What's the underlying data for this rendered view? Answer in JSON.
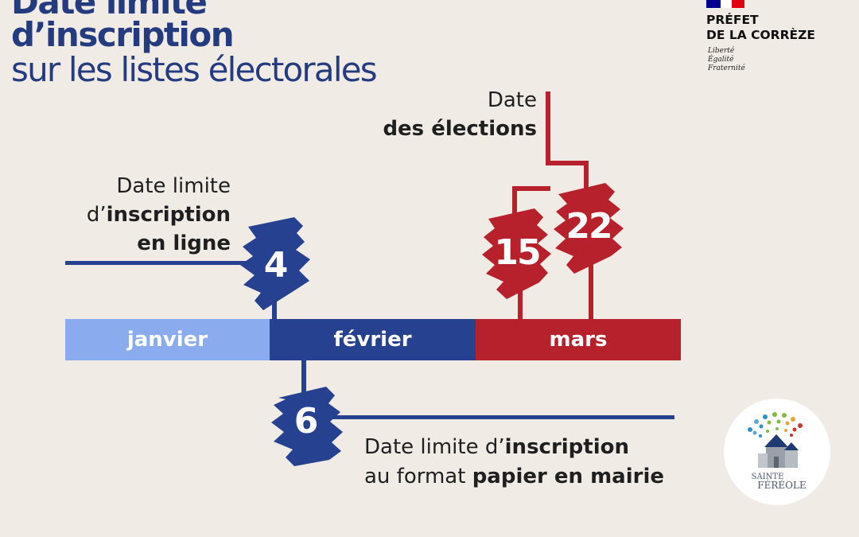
{
  "title": {
    "line1": "Date limite",
    "line2": "d’inscription",
    "line3": "sur les listes électorales"
  },
  "logo": {
    "line1": "PRÉFET",
    "line2": "DE LA CORRÈZE",
    "motto": [
      "Liberté",
      "Égalité",
      "Fraternité"
    ],
    "flag_colors": [
      "#000091",
      "#ffffff",
      "#e1000f"
    ]
  },
  "timeline": {
    "months": [
      "janvier",
      "février",
      "mars"
    ],
    "month_colors": [
      "#8aabee",
      "#26418f",
      "#b6212b"
    ]
  },
  "online": {
    "line1": "Date limite",
    "line2_prefix": "d’",
    "line2_bold": "inscription",
    "line3_bold": "en ligne",
    "day": "4"
  },
  "paper": {
    "line1_prefix": "Date limite d’",
    "line1_bold": "inscription",
    "line2_prefix": "au format ",
    "line2_bold": "papier en mairie",
    "day": "6"
  },
  "elections": {
    "line1": "Date",
    "line2_bold": "des élections",
    "days": [
      "15",
      "22"
    ]
  },
  "badge": {
    "line1": "SAINTE",
    "line2": "FÉRÉOLE",
    "colors": [
      "#2e8fc9",
      "#5aa9dd",
      "#82b940",
      "#e8a23a",
      "#c9342c",
      "#1d3b72"
    ]
  },
  "colors": {
    "navy": "#26418f",
    "red": "#b6212b",
    "light_blue": "#8aabee",
    "background": "#f1ebe5"
  }
}
